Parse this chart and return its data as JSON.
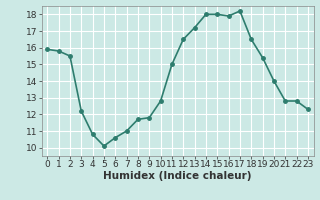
{
  "x": [
    0,
    1,
    2,
    3,
    4,
    5,
    6,
    7,
    8,
    9,
    10,
    11,
    12,
    13,
    14,
    15,
    16,
    17,
    18,
    19,
    20,
    21,
    22,
    23
  ],
  "y": [
    15.9,
    15.8,
    15.5,
    12.2,
    10.8,
    10.1,
    10.6,
    11.0,
    11.7,
    11.8,
    12.8,
    15.0,
    16.5,
    17.2,
    18.0,
    18.0,
    17.9,
    18.2,
    16.5,
    15.4,
    14.0,
    12.8,
    12.8,
    12.3
  ],
  "line_color": "#2e7d6e",
  "marker": "o",
  "marker_size": 2.5,
  "line_width": 1.2,
  "bg_color": "#cce9e5",
  "grid_color": "#ffffff",
  "xlabel": "Humidex (Indice chaleur)",
  "xlim": [
    -0.5,
    23.5
  ],
  "ylim": [
    9.5,
    18.5
  ],
  "yticks": [
    10,
    11,
    12,
    13,
    14,
    15,
    16,
    17,
    18
  ],
  "xticks": [
    0,
    1,
    2,
    3,
    4,
    5,
    6,
    7,
    8,
    9,
    10,
    11,
    12,
    13,
    14,
    15,
    16,
    17,
    18,
    19,
    20,
    21,
    22,
    23
  ],
  "tick_label_size": 6.5,
  "xlabel_size": 7.5
}
